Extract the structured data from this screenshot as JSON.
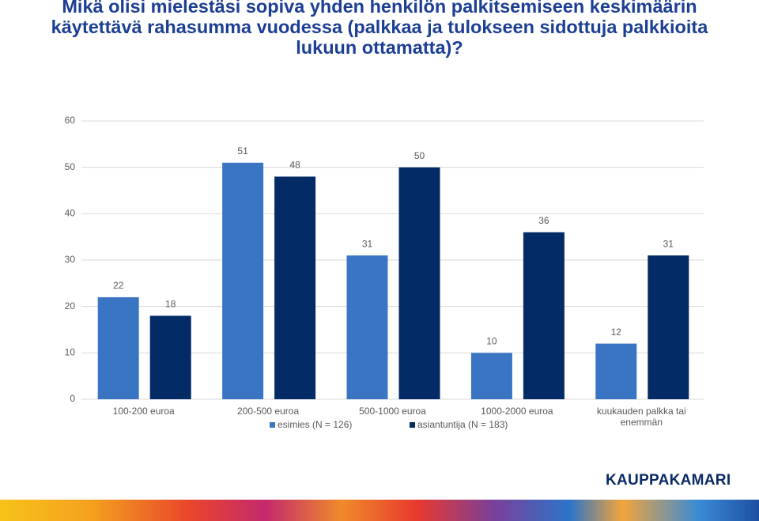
{
  "chart_data": {
    "type": "bar",
    "title": "Mikä olisi mielestäsi sopiva yhden henkilön palkitsemiseen keskimäärin käytettävä rahasumma vuodessa (palkkaa ja tulokseen sidottuja palkkioita lukuun ottamatta)?",
    "categories": [
      "100-200 euroa",
      "200-500 euroa",
      "500-1000 euroa",
      "1000-2000 euroa",
      "kuukauden palkka tai enemmän"
    ],
    "series": [
      {
        "name": "esimies (N = 126)",
        "color": "#3a75c4",
        "values": [
          22,
          51,
          31,
          10,
          12
        ]
      },
      {
        "name": "asiantuntija (N = 183)",
        "color": "#032b66",
        "values": [
          18,
          48,
          50,
          36,
          31
        ]
      }
    ],
    "ylim": [
      0,
      60
    ],
    "yticks": [
      0,
      10,
      20,
      30,
      40,
      50,
      60
    ],
    "grid": true,
    "legend": "bottom"
  },
  "logo": "KAUPPAKAMARI"
}
